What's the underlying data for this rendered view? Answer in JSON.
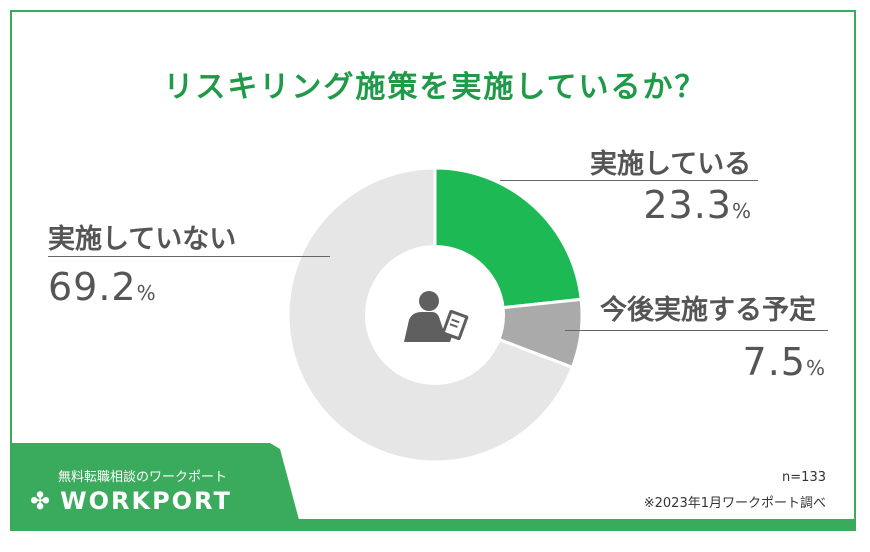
{
  "chart_data": {
    "type": "pie",
    "title": "リスキリング施策を実施しているか？",
    "slices": [
      {
        "label": "実施している",
        "value": 23.3,
        "color": "#1db954"
      },
      {
        "label": "今後実施する予定",
        "value": 7.5,
        "color": "#aaaaaa"
      },
      {
        "label": "実施していない",
        "value": 69.2,
        "color": "#e6e6e6"
      }
    ],
    "unit": "%",
    "donut": true,
    "center_icon": "person-writing-icon"
  },
  "footer": {
    "tagline": "無料転職相談のワークポート",
    "logo": "WORKPORT",
    "sample": "n=133",
    "source": "※2023年1月ワークポート調べ"
  },
  "colors": {
    "brand": "#3aaa5c",
    "title": "#1f9a48"
  }
}
